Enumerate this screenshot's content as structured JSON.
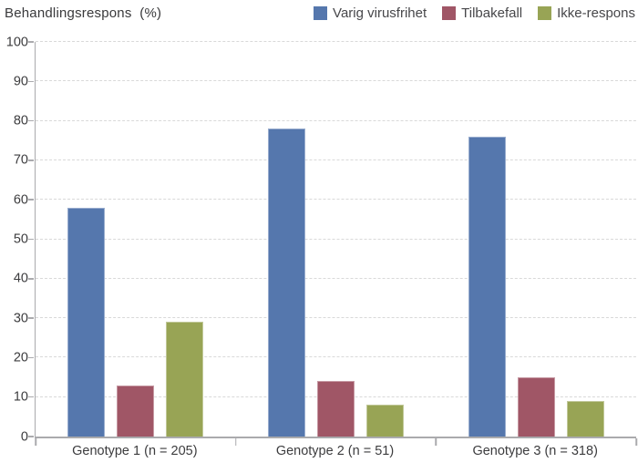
{
  "header": {
    "title": "Behandlingsrespons  (%)"
  },
  "chart_data": {
    "type": "bar",
    "title": "Behandlingsrespons (%)",
    "categories": [
      "Genotype 1 (n = 205)",
      "Genotype 2 (n = 51)",
      "Genotype 3 (n = 318)"
    ],
    "series": [
      {
        "name": "Varig virusfrihet",
        "color": "#5577ad",
        "values": [
          58,
          78,
          76
        ]
      },
      {
        "name": "Tilbakefall",
        "color": "#a05666",
        "values": [
          13,
          14,
          15
        ]
      },
      {
        "name": "Ikke-respons",
        "color": "#98a455",
        "values": [
          29,
          8,
          9
        ]
      }
    ],
    "ylim": [
      0,
      100
    ],
    "y_ticks": [
      0,
      10,
      20,
      30,
      40,
      50,
      60,
      70,
      80,
      90,
      100
    ],
    "grid": "horizontal-dashed",
    "legend_position": "top-right",
    "axis_color": "#aaaaad",
    "gridline_color": "#d9d9d9",
    "text_color": "#3c3c3e"
  }
}
